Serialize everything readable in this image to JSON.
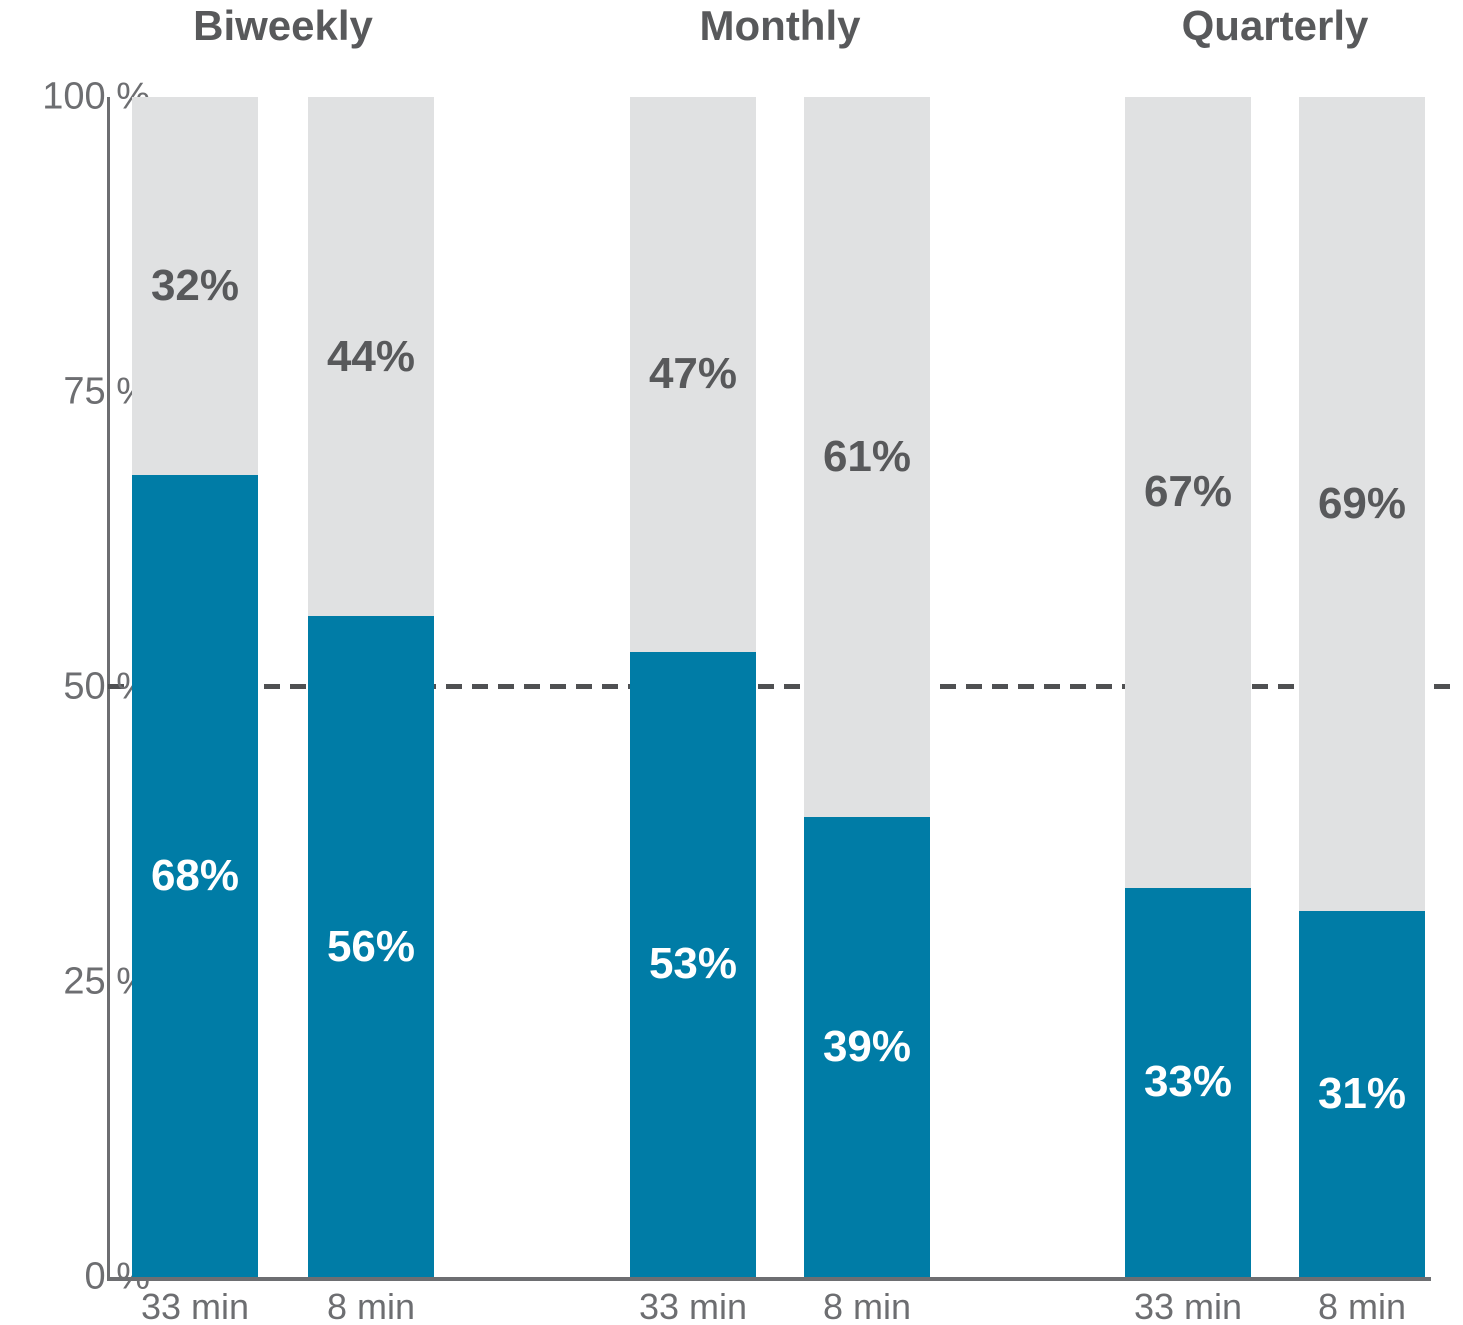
{
  "chart_data": {
    "type": "bar",
    "subtype": "stacked-percent",
    "title": "",
    "group_titles": [
      "Biweekly",
      "Monthly",
      "Quarterly"
    ],
    "groups": [
      {
        "title": "Biweekly",
        "bars": [
          {
            "category": "33 min",
            "filled_pct": 68,
            "filled_label": "68%",
            "remainder_pct": 32,
            "remainder_label": "32%"
          },
          {
            "category": "8 min",
            "filled_pct": 56,
            "filled_label": "56%",
            "remainder_pct": 44,
            "remainder_label": "44%"
          }
        ]
      },
      {
        "title": "Monthly",
        "bars": [
          {
            "category": "33 min",
            "filled_pct": 53,
            "filled_label": "53%",
            "remainder_pct": 47,
            "remainder_label": "47%"
          },
          {
            "category": "8 min",
            "filled_pct": 39,
            "filled_label": "39%",
            "remainder_pct": 61,
            "remainder_label": "61%"
          }
        ]
      },
      {
        "title": "Quarterly",
        "bars": [
          {
            "category": "33 min",
            "filled_pct": 33,
            "filled_label": "33%",
            "remainder_pct": 67,
            "remainder_label": "67%"
          },
          {
            "category": "8 min",
            "filled_pct": 31,
            "filled_label": "31%",
            "remainder_pct": 69,
            "remainder_label": "69%"
          }
        ]
      }
    ],
    "y_axis": {
      "range": [
        0,
        100
      ],
      "ticks": [
        {
          "value": 100,
          "label": "100 %"
        },
        {
          "value": 75,
          "label": "75 %"
        },
        {
          "value": 50,
          "label": "50 %"
        },
        {
          "value": 25,
          "label": "25 %"
        },
        {
          "value": 0,
          "label": "0 %"
        }
      ]
    },
    "reference_line": {
      "value": 50,
      "style": "dashed"
    },
    "legend": "none",
    "grid": "off",
    "colors": {
      "filled": "#007CA6",
      "remainder": "#E0E1E2",
      "filled_label_text": "#FFFFFF",
      "remainder_label_text": "#58595B",
      "title_text": "#58595B",
      "axis_text": "#6D6E71",
      "axis_line": "#6D6E71",
      "reference_line": "#4F5052"
    }
  }
}
